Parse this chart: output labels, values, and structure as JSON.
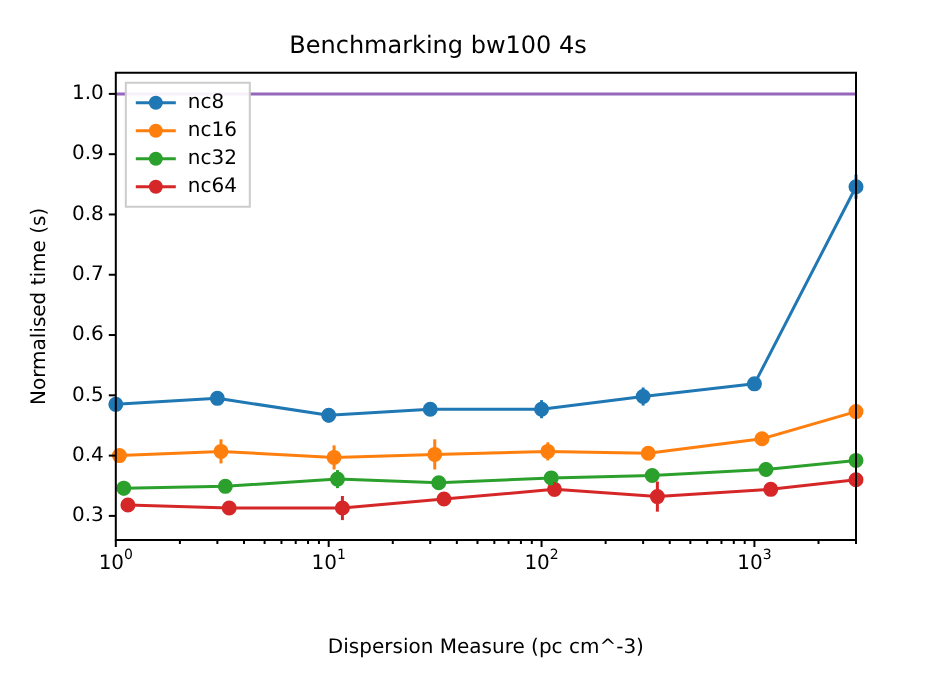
{
  "chart_data": {
    "type": "line",
    "title": "Benchmarking bw100 4s",
    "xlabel": "Dispersion Measure (pc cm^-3)",
    "ylabel": "Normalised time (s)",
    "log": "x",
    "xlim": [
      1,
      3000
    ],
    "ylim": [
      0.26,
      1.035
    ],
    "xticks": [
      {
        "value": 1,
        "label": "10$^{0}$"
      },
      {
        "value": 2,
        "label": null
      },
      {
        "value": 3,
        "label": null
      },
      {
        "value": 4,
        "label": null
      },
      {
        "value": 5,
        "label": null
      },
      {
        "value": 6,
        "label": null
      },
      {
        "value": 7,
        "label": null
      },
      {
        "value": 8,
        "label": null
      },
      {
        "value": 9,
        "label": null
      },
      {
        "value": 10,
        "label": "10$^{1}$"
      },
      {
        "value": 20,
        "label": null
      },
      {
        "value": 30,
        "label": null
      },
      {
        "value": 40,
        "label": null
      },
      {
        "value": 50,
        "label": null
      },
      {
        "value": 60,
        "label": null
      },
      {
        "value": 70,
        "label": null
      },
      {
        "value": 80,
        "label": null
      },
      {
        "value": 90,
        "label": null
      },
      {
        "value": 100,
        "label": "10$^{2}$"
      },
      {
        "value": 200,
        "label": null
      },
      {
        "value": 300,
        "label": null
      },
      {
        "value": 400,
        "label": null
      },
      {
        "value": 500,
        "label": null
      },
      {
        "value": 600,
        "label": null
      },
      {
        "value": 700,
        "label": null
      },
      {
        "value": 800,
        "label": null
      },
      {
        "value": 900,
        "label": null
      },
      {
        "value": 1000,
        "label": "10$^{3}$"
      },
      {
        "value": 2000,
        "label": null
      },
      {
        "value": 3000,
        "label": null
      }
    ],
    "yticks": [
      0.3,
      0.4,
      0.5,
      0.6,
      0.7,
      0.8,
      0.9,
      {
        "value": 1,
        "label": "1.0"
      }
    ],
    "legend": "top left",
    "marker": "circle",
    "line_style": "solid",
    "grid": false,
    "ref_lines": [
      {
        "axis": "y",
        "value": 1,
        "color": "#9467bd"
      }
    ],
    "series": [
      {
        "name": "nc8",
        "color": "#1f77b4",
        "x": [
          1,
          3,
          10,
          30,
          100,
          300,
          1000,
          3000
        ],
        "values": [
          0.485,
          0.495,
          0.467,
          0.477,
          0.477,
          0.498,
          0.519,
          0.846
        ],
        "errors": [
          0.01,
          0.01,
          0.012,
          0.01,
          0.015,
          0.015,
          0.005,
          0.02
        ]
      },
      {
        "name": "nc16",
        "color": "#ff7f0e",
        "x": [
          1.04,
          3.12,
          10.6,
          31.5,
          107,
          317,
          1085,
          3000
        ],
        "values": [
          0.4,
          0.407,
          0.397,
          0.402,
          0.407,
          0.404,
          0.428,
          0.473
        ],
        "errors": [
          0.005,
          0.02,
          0.02,
          0.025,
          0.015,
          0.005,
          0.005,
          null
        ]
      },
      {
        "name": "nc32",
        "color": "#2ca02c",
        "x": [
          1.09,
          3.27,
          11,
          32.9,
          111,
          331,
          1133,
          3000
        ],
        "values": [
          0.346,
          0.349,
          0.361,
          0.355,
          0.363,
          0.367,
          0.377,
          0.392
        ],
        "errors": [
          0.012,
          0.01,
          0.015,
          0.01,
          0.01,
          0.01,
          0.012,
          null
        ]
      },
      {
        "name": "nc64",
        "color": "#d62728",
        "x": [
          1.14,
          3.41,
          11.6,
          34.8,
          115,
          350,
          1193,
          3000
        ],
        "values": [
          0.318,
          0.313,
          0.313,
          0.328,
          0.344,
          0.332,
          0.344,
          0.36
        ],
        "errors": [
          0.005,
          0.008,
          0.02,
          0.01,
          0.012,
          0.025,
          0.005,
          null
        ]
      }
    ]
  }
}
